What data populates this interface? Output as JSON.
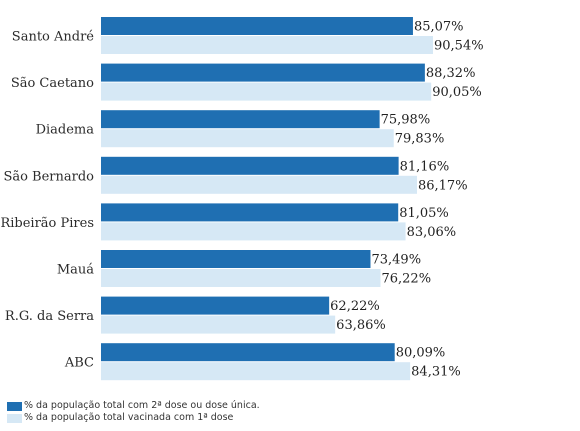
{
  "chart_data": {
    "type": "bar",
    "orientation": "horizontal",
    "categories": [
      "Santo André",
      "São Caetano",
      "Diadema",
      "São Bernardo",
      "Ribeirão Pires",
      "Mauá",
      "R.G. da Serra",
      "ABC"
    ],
    "series": [
      {
        "name": "% da população total com 2ª dose ou dose única.",
        "values": [
          85.07,
          88.32,
          75.98,
          81.16,
          81.05,
          73.49,
          62.22,
          80.09
        ],
        "labels": [
          "85,07%",
          "88,32%",
          "75,98%",
          "81,16%",
          "81,05%",
          "73,49%",
          "62,22%",
          "80,09%"
        ],
        "color": "#1f6fb2"
      },
      {
        "name": "% da população total vacinada com 1ª dose",
        "values": [
          90.54,
          90.05,
          79.83,
          86.17,
          83.06,
          76.22,
          63.86,
          84.31
        ],
        "labels": [
          "90,54%",
          "90,05%",
          "79,83%",
          "86,17%",
          "83,06%",
          "76,22%",
          "63,86%",
          "84,31%"
        ],
        "color": "#d6e8f5"
      }
    ],
    "xlim": [
      0,
      100
    ],
    "grid": false,
    "legend_position": "bottom-left"
  }
}
